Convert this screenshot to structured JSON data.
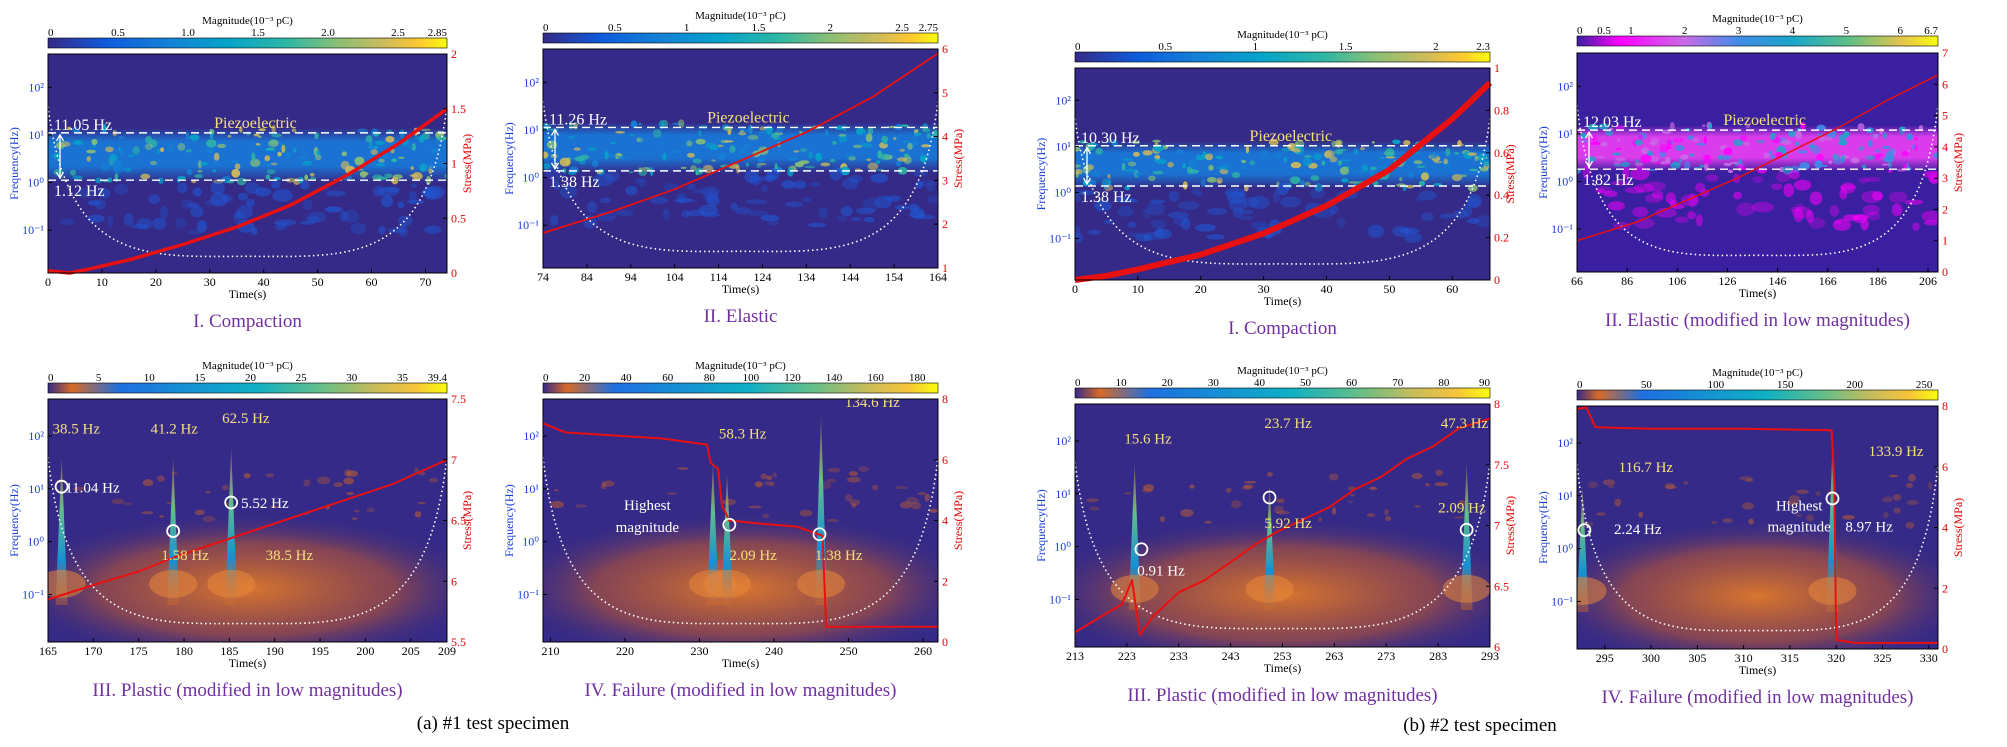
{
  "figure": {
    "group_captions": [
      "(a) #1 test specimen",
      "(b) #2 test specimen"
    ],
    "colors": {
      "axis_left": "#1a3cd6",
      "axis_right": "#e00000",
      "caption": "#7030a0",
      "annotation": "#f4e07a",
      "stress_line": "#e81010",
      "cone": "#ffffff"
    }
  },
  "chart_data": [
    {
      "type": "heatmap",
      "panel_caption": "I. Compaction",
      "colormap": "parula",
      "colorbar_label": "Magnitude(10⁻³ pC)",
      "colorbar_ticks": [
        "0",
        "0.5",
        "1.0",
        "1.5",
        "2.0",
        "2.5",
        "2.85"
      ],
      "colorbar_range": [
        0,
        2.85
      ],
      "xlabel": "Time(s)",
      "xticks": [
        "0",
        "10",
        "20",
        "30",
        "40",
        "50",
        "60",
        "70"
      ],
      "xlim": [
        0,
        74
      ],
      "ylabel": "Frequency(Hz)",
      "yticks": [
        "10⁻¹",
        "10⁰",
        "10¹",
        "10²"
      ],
      "ylim_log10": [
        -1.9,
        2.7
      ],
      "y2label": "Stress(MPa)",
      "y2ticks": [
        "0",
        "0.5",
        "1",
        "1.5",
        "2"
      ],
      "y2lim": [
        0,
        2
      ],
      "band_hz": [
        11.05,
        1.12
      ],
      "band_labels": [
        "11.05 Hz",
        "1.12 Hz"
      ],
      "band_title": "Piezoelectric",
      "stress": {
        "x": [
          0,
          4,
          8,
          15,
          25,
          35,
          45,
          55,
          65,
          74
        ],
        "y": [
          0.02,
          0.0,
          0.04,
          0.12,
          0.26,
          0.42,
          0.62,
          0.88,
          1.18,
          1.5
        ],
        "width": 3.5
      },
      "spikes": [],
      "circles": [],
      "annotations": []
    },
    {
      "type": "heatmap",
      "panel_caption": "II. Elastic",
      "colormap": "parula",
      "colorbar_label": "Magnitude(10⁻³ pC)",
      "colorbar_ticks": [
        "0",
        "0.5",
        "1",
        "1.5",
        "2",
        "2.5",
        "2.75"
      ],
      "colorbar_range": [
        0,
        2.75
      ],
      "xlabel": "Time(s)",
      "xticks": [
        "74",
        "84",
        "94",
        "104",
        "114",
        "124",
        "134",
        "144",
        "154",
        "164"
      ],
      "xlim": [
        74,
        164
      ],
      "ylabel": "Frequency(Hz)",
      "yticks": [
        "10⁻¹",
        "10⁰",
        "10¹",
        "10²"
      ],
      "ylim_log10": [
        -1.9,
        2.7
      ],
      "y2label": "Stress(MPa)",
      "y2ticks": [
        "1",
        "2",
        "3",
        "4",
        "5",
        "6"
      ],
      "y2lim": [
        1,
        6
      ],
      "band_hz": [
        11.26,
        1.38
      ],
      "band_labels": [
        "11.26 Hz",
        "1.38 Hz"
      ],
      "band_title": "Piezoelectric",
      "stress": {
        "x": [
          74,
          90,
          104,
          119,
          134,
          149,
          164
        ],
        "y": [
          1.8,
          2.3,
          2.8,
          3.45,
          4.1,
          4.9,
          5.9
        ],
        "width": 1.8
      },
      "spikes": [],
      "circles": [],
      "annotations": []
    },
    {
      "type": "heatmap",
      "panel_caption": "I. Compaction",
      "colormap": "parula",
      "colorbar_label": "Magnitude(10⁻³ pC)",
      "colorbar_ticks": [
        "0",
        "0.5",
        "1",
        "1.5",
        "2",
        "2.3"
      ],
      "colorbar_range": [
        0,
        2.3
      ],
      "xlabel": "Time(s)",
      "xticks": [
        "0",
        "10",
        "20",
        "30",
        "40",
        "50",
        "60"
      ],
      "xlim": [
        0,
        66
      ],
      "ylabel": "Frequency(Hz)",
      "yticks": [
        "10⁻¹",
        "10⁰",
        "10¹",
        "10²"
      ],
      "ylim_log10": [
        -1.9,
        2.7
      ],
      "y2label": "Stress(MPa)",
      "y2ticks": [
        "0",
        "0.2",
        "0.4",
        "0.6",
        "0.8",
        "1"
      ],
      "y2lim": [
        0,
        1
      ],
      "band_hz": [
        10.3,
        1.38
      ],
      "band_labels": [
        "10.30 Hz",
        "1.38 Hz"
      ],
      "band_title": "Piezoelectric",
      "stress": {
        "x": [
          0,
          5,
          10,
          20,
          30,
          40,
          50,
          60,
          66
        ],
        "y": [
          0.0,
          0.02,
          0.05,
          0.12,
          0.22,
          0.35,
          0.52,
          0.76,
          0.93
        ],
        "width": 6
      },
      "spikes": [],
      "circles": [],
      "annotations": []
    },
    {
      "type": "heatmap",
      "panel_caption": "II. Elastic (modified in low magnitudes)",
      "colormap": "magenta",
      "colorbar_label": "Magnitude(10⁻³ pC)",
      "colorbar_ticks": [
        "0",
        "0.5",
        "1",
        "2",
        "3",
        "4",
        "5",
        "6",
        "6.7"
      ],
      "colorbar_range": [
        0,
        6.7
      ],
      "xlabel": "Time(s)",
      "xticks": [
        "66",
        "86",
        "106",
        "126",
        "146",
        "166",
        "186",
        "206"
      ],
      "xlim": [
        66,
        210
      ],
      "ylabel": "Frequency(Hz)",
      "yticks": [
        "10⁻¹",
        "10⁰",
        "10¹",
        "10²"
      ],
      "ylim_log10": [
        -1.9,
        2.7
      ],
      "y2label": "Stress(MPa)",
      "y2ticks": [
        "0",
        "1",
        "2",
        "3",
        "4",
        "5",
        "6",
        "7"
      ],
      "y2lim": [
        0,
        7
      ],
      "band_hz": [
        12.03,
        1.82
      ],
      "band_labels": [
        "12.03 Hz",
        "1.82 Hz"
      ],
      "band_title": "Piezoelectric",
      "stress": {
        "x": [
          66,
          90,
          110,
          130,
          150,
          170,
          190,
          210
        ],
        "y": [
          1.0,
          1.6,
          2.3,
          3.0,
          3.8,
          4.6,
          5.5,
          6.3
        ],
        "width": 1.5
      },
      "spikes": [],
      "circles": [],
      "annotations": []
    },
    {
      "type": "heatmap",
      "panel_caption": "III. Plastic (modified in low magnitudes)",
      "colormap": "hot",
      "colorbar_label": "Magnitude(10⁻³ pC)",
      "colorbar_ticks": [
        "0",
        "5",
        "10",
        "15",
        "20",
        "25",
        "30",
        "35",
        "39.4"
      ],
      "colorbar_range": [
        0,
        39.4
      ],
      "xlabel": "Time(s)",
      "xticks": [
        "165",
        "170",
        "175",
        "180",
        "185",
        "190",
        "195",
        "200",
        "205",
        "209"
      ],
      "xlim": [
        165,
        209
      ],
      "ylabel": "Frequency(Hz)",
      "yticks": [
        "10⁻¹",
        "10⁰",
        "10¹",
        "10²"
      ],
      "ylim_log10": [
        -1.9,
        2.7
      ],
      "y2label": "Stress(MPa)",
      "y2ticks": [
        "5.5",
        "6",
        "6.5",
        "7",
        "7.5"
      ],
      "y2lim": [
        5.5,
        7.5
      ],
      "band_hz": [],
      "band_labels": [],
      "band_title": "",
      "stress": {
        "x": [
          165,
          170,
          175,
          179,
          183,
          187,
          191,
          195,
          199,
          203,
          206,
          209
        ],
        "y": [
          5.85,
          5.97,
          6.08,
          6.2,
          6.3,
          6.4,
          6.5,
          6.6,
          6.7,
          6.8,
          6.9,
          7.0
        ],
        "width": 2
      },
      "spikes": [
        {
          "t": 166.5,
          "f_log": 1.6
        },
        {
          "t": 178.8,
          "f_log": 1.6
        },
        {
          "t": 185.2,
          "f_log": 1.8
        }
      ],
      "circles": [
        {
          "t": 166.5,
          "f_log": 1.04
        },
        {
          "t": 178.8,
          "f_log": 0.2
        },
        {
          "t": 185.2,
          "f_log": 0.74
        }
      ],
      "annotations": [
        {
          "text": "38.5 Hz",
          "t": 165.5,
          "f_log": 2.05
        },
        {
          "text": "41.2 Hz",
          "t": 176.3,
          "f_log": 2.05
        },
        {
          "text": "62.5 Hz",
          "t": 184.2,
          "f_log": 2.25
        },
        {
          "text": "11.04 Hz",
          "t": 166.9,
          "f_log": 0.93
        },
        {
          "text": "5.52 Hz",
          "t": 186.3,
          "f_log": 0.64
        },
        {
          "text": "1.58 Hz",
          "t": 177.5,
          "f_log": -0.35
        },
        {
          "text": "38.5 Hz",
          "t": 189,
          "f_log": -0.35
        }
      ]
    },
    {
      "type": "heatmap",
      "panel_caption": "IV. Failure (modified in low magnitudes)",
      "colormap": "hot",
      "colorbar_label": "Magnitude(10⁻³ pC)",
      "colorbar_ticks": [
        "0",
        "20",
        "40",
        "60",
        "80",
        "100",
        "120",
        "140",
        "160",
        "180"
      ],
      "colorbar_range": [
        0,
        190
      ],
      "xlabel": "Time(s)",
      "xticks": [
        "210",
        "220",
        "230",
        "240",
        "250",
        "260"
      ],
      "xlim": [
        209,
        262
      ],
      "ylabel": "Frequency(Hz)",
      "yticks": [
        "10⁻¹",
        "10⁰",
        "10¹",
        "10²"
      ],
      "ylim_log10": [
        -1.9,
        2.7
      ],
      "y2label": "Stress(MPa)",
      "y2ticks": [
        "0",
        "2",
        "4",
        "6",
        "8"
      ],
      "y2lim": [
        0,
        8
      ],
      "band_hz": [],
      "band_labels": [],
      "band_title": "",
      "stress": {
        "x": [
          209,
          212,
          225,
          231,
          231.5,
          232.5,
          233,
          234,
          238,
          243,
          246.5,
          247,
          262
        ],
        "y": [
          7.2,
          6.9,
          6.7,
          6.5,
          5.9,
          5.7,
          4.5,
          4.0,
          3.9,
          3.8,
          3.5,
          0.5,
          0.5
        ],
        "width": 2
      },
      "spikes": [
        {
          "t": 231.8,
          "f_log": 1.5
        },
        {
          "t": 233.7,
          "f_log": 1.3
        },
        {
          "t": 246.3,
          "f_log": 2.4
        }
      ],
      "circles": [
        {
          "t": 234,
          "f_log": 0.32
        },
        {
          "t": 246.1,
          "f_log": 0.14
        }
      ],
      "annotations": [
        {
          "text": "58.3 Hz",
          "t": 232.6,
          "f_log": 1.95
        },
        {
          "text": "134.6 Hz",
          "t": 249.5,
          "f_log": 2.55
        },
        {
          "text": "Highest",
          "t": 223,
          "f_log": 0.6
        },
        {
          "text": "magnitude",
          "t": 223,
          "f_log": 0.18
        },
        {
          "text": "2.09 Hz",
          "t": 234,
          "f_log": -0.35
        },
        {
          "text": "1.38 Hz",
          "t": 245.5,
          "f_log": -0.35
        }
      ]
    },
    {
      "type": "heatmap",
      "panel_caption": "III. Plastic (modified in low magnitudes)",
      "colormap": "hot",
      "colorbar_label": "Magnitude(10⁻³ pC)",
      "colorbar_ticks": [
        "0",
        "10",
        "20",
        "30",
        "40",
        "50",
        "60",
        "70",
        "80",
        "90"
      ],
      "colorbar_range": [
        0,
        90
      ],
      "xlabel": "Time(s)",
      "xticks": [
        "213",
        "223",
        "233",
        "243",
        "253",
        "263",
        "273",
        "283",
        "293"
      ],
      "xlim": [
        213,
        293
      ],
      "ylabel": "Frequency(Hz)",
      "yticks": [
        "10⁻¹",
        "10⁰",
        "10¹",
        "10²"
      ],
      "ylim_log10": [
        -1.9,
        2.7
      ],
      "y2label": "Stress(MPa)",
      "y2ticks": [
        "6",
        "6.5",
        "7",
        "7.5",
        "8"
      ],
      "y2lim": [
        6,
        8
      ],
      "band_hz": [],
      "band_labels": [],
      "band_title": "",
      "stress": {
        "x": [
          213,
          218,
          222,
          224,
          225.5,
          228,
          233,
          238,
          243,
          248,
          252,
          257,
          262,
          267,
          272,
          277,
          282,
          287,
          293
        ],
        "y": [
          6.12,
          6.25,
          6.35,
          6.55,
          6.1,
          6.25,
          6.45,
          6.55,
          6.7,
          6.85,
          6.95,
          7.05,
          7.15,
          7.3,
          7.4,
          7.55,
          7.65,
          7.8,
          7.88
        ],
        "width": 2
      },
      "spikes": [
        {
          "t": 224.5,
          "f_log": 1.6
        },
        {
          "t": 250.5,
          "f_log": 1.2
        },
        {
          "t": 288.5,
          "f_log": 1.6
        }
      ],
      "circles": [
        {
          "t": 225.8,
          "f_log": -0.05
        },
        {
          "t": 250.5,
          "f_log": 0.93
        },
        {
          "t": 288.5,
          "f_log": 0.32
        }
      ],
      "annotations": [
        {
          "text": "15.6 Hz",
          "t": 222.5,
          "f_log": 1.95
        },
        {
          "text": "23.7 Hz",
          "t": 249.5,
          "f_log": 2.25
        },
        {
          "text": "47.3 Hz",
          "t": 283.5,
          "f_log": 2.25
        },
        {
          "text": "0.91 Hz",
          "t": 225,
          "f_log": -0.55
        },
        {
          "text": "5.92 Hz",
          "t": 249.5,
          "f_log": 0.35
        },
        {
          "text": "2.09 Hz",
          "t": 283,
          "f_log": 0.65
        }
      ]
    },
    {
      "type": "heatmap",
      "panel_caption": "IV. Failure (modified in low magnitudes)",
      "colormap": "hot",
      "colorbar_label": "Magnitude(10⁻³ pC)",
      "colorbar_ticks": [
        "0",
        "50",
        "100",
        "150",
        "200",
        "250"
      ],
      "colorbar_range": [
        0,
        260
      ],
      "xlabel": "Time(s)",
      "xticks": [
        "295",
        "300",
        "305",
        "310",
        "315",
        "320",
        "325",
        "330"
      ],
      "xlim": [
        292,
        331
      ],
      "ylabel": "Frequency(Hz)",
      "yticks": [
        "10⁻¹",
        "10⁰",
        "10¹",
        "10²"
      ],
      "ylim_log10": [
        -1.9,
        2.7
      ],
      "y2label": "Stress(MPa)",
      "y2ticks": [
        "0",
        "2",
        "4",
        "6",
        "8"
      ],
      "y2lim": [
        0,
        8
      ],
      "band_hz": [],
      "band_labels": [],
      "band_title": "",
      "stress": {
        "x": [
          292,
          293,
          294,
          300,
          310,
          319.5,
          319.8,
          320,
          322,
          331
        ],
        "y": [
          7.9,
          7.95,
          7.3,
          7.25,
          7.25,
          7.2,
          5.5,
          0.3,
          0.2,
          0.2
        ],
        "width": 2
      },
      "spikes": [
        {
          "t": 292.6,
          "f_log": 1.2
        },
        {
          "t": 319.6,
          "f_log": 2.0
        }
      ],
      "circles": [
        {
          "t": 292.8,
          "f_log": 0.35
        },
        {
          "t": 319.6,
          "f_log": 0.95
        }
      ],
      "annotations": [
        {
          "text": "116.7 Hz",
          "t": 296.5,
          "f_log": 1.45
        },
        {
          "text": "133.9 Hz",
          "t": 323.5,
          "f_log": 1.75
        },
        {
          "text": "2.24 Hz",
          "t": 296,
          "f_log": 0.28
        },
        {
          "text": "Highest",
          "t": 316,
          "f_log": 0.72
        },
        {
          "text": "magnitude",
          "t": 316,
          "f_log": 0.32
        },
        {
          "text": "8.97 Hz",
          "t": 321,
          "f_log": 0.32
        }
      ]
    }
  ]
}
